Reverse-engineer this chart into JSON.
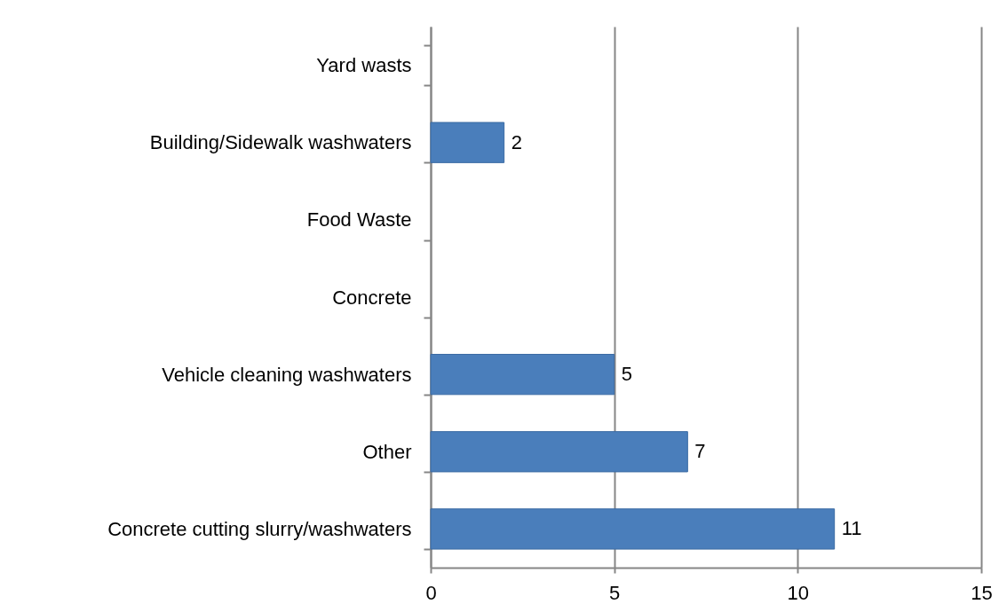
{
  "chart_data": {
    "type": "bar",
    "orientation": "horizontal",
    "categories": [
      "Yard wasts",
      "Building/Sidewalk washwaters",
      "Food Waste",
      "Concrete",
      "Vehicle cleaning washwaters",
      "Other",
      "Concrete cutting slurry/washwaters"
    ],
    "values": [
      null,
      2,
      null,
      null,
      5,
      7,
      11
    ],
    "color": "#4a7ebb",
    "xlim": [
      0,
      15
    ],
    "xticks": [
      0,
      5,
      10,
      15
    ],
    "grid": "x",
    "data_labels": true
  }
}
